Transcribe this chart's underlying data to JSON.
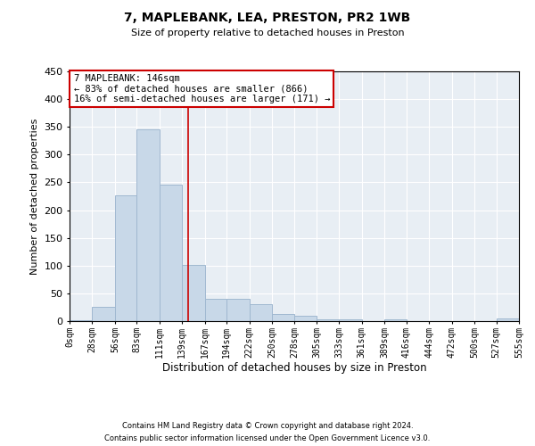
{
  "title1": "7, MAPLEBANK, LEA, PRESTON, PR2 1WB",
  "title2": "Size of property relative to detached houses in Preston",
  "xlabel": "Distribution of detached houses by size in Preston",
  "ylabel": "Number of detached properties",
  "footnote1": "Contains HM Land Registry data © Crown copyright and database right 2024.",
  "footnote2": "Contains public sector information licensed under the Open Government Licence v3.0.",
  "bin_edges": [
    0,
    28,
    56,
    83,
    111,
    139,
    167,
    194,
    222,
    250,
    278,
    305,
    333,
    361,
    389,
    416,
    444,
    472,
    500,
    527,
    555
  ],
  "bar_heights": [
    2,
    25,
    226,
    346,
    246,
    101,
    40,
    40,
    30,
    13,
    10,
    4,
    4,
    0,
    4,
    0,
    0,
    0,
    0,
    5
  ],
  "bar_color": "#c8d8e8",
  "bar_edge_color": "#a0b8d0",
  "property_size": 146,
  "vline_color": "#cc0000",
  "annotation_text": "7 MAPLEBANK: 146sqm\n← 83% of detached houses are smaller (866)\n16% of semi-detached houses are larger (171) →",
  "annotation_box_color": "#ffffff",
  "annotation_box_edge_color": "#cc0000",
  "ylim": [
    0,
    450
  ],
  "background_color": "#e8eef4",
  "grid_color": "#ffffff",
  "tick_labels": [
    "0sqm",
    "28sqm",
    "56sqm",
    "83sqm",
    "111sqm",
    "139sqm",
    "167sqm",
    "194sqm",
    "222sqm",
    "250sqm",
    "278sqm",
    "305sqm",
    "333sqm",
    "361sqm",
    "389sqm",
    "416sqm",
    "444sqm",
    "472sqm",
    "500sqm",
    "527sqm",
    "555sqm"
  ]
}
